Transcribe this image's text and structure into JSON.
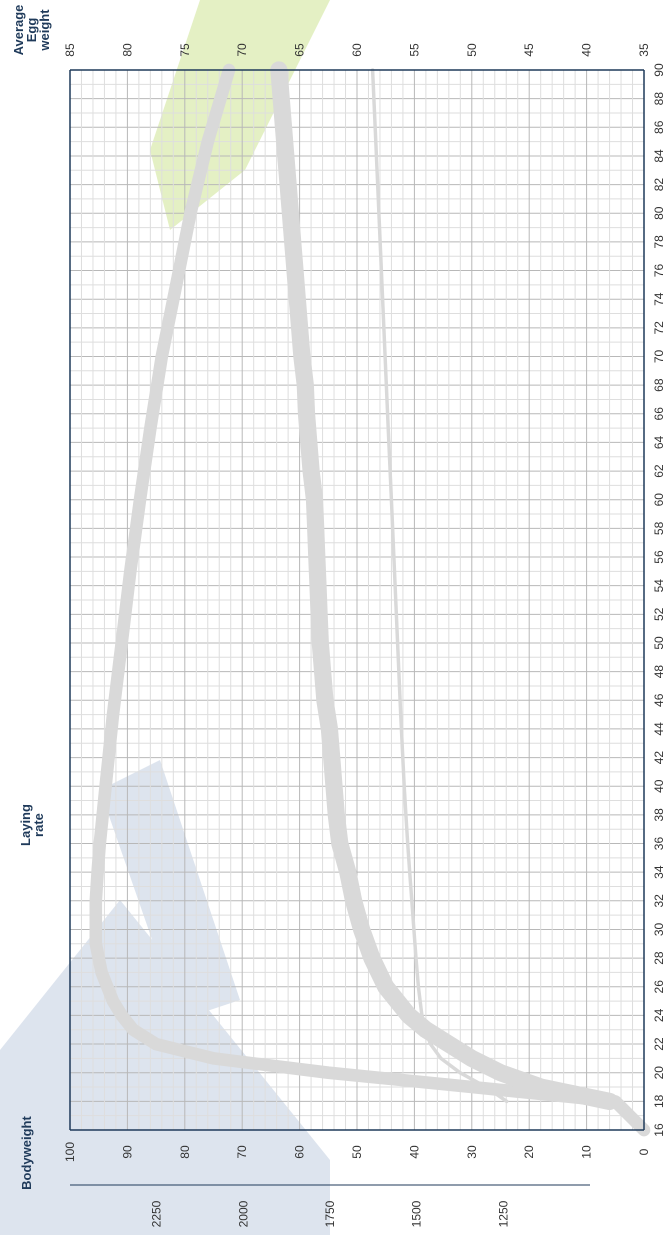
{
  "colors": {
    "grid_major": "#b8b8b8",
    "grid_minor": "#dedede",
    "axis": "#1f3a5a",
    "tick_text": "#333333",
    "curve": "#d9d9d9",
    "watermark_green": "#e4f0c4",
    "watermark_blue": "#dde4ee"
  },
  "labels": {
    "egg_weight": [
      "Average",
      "Egg",
      "weight"
    ],
    "laying_rate": [
      "Laying",
      "rate"
    ],
    "bodyweight": "Bodyweight"
  },
  "chart_data": {
    "type": "line",
    "orientation": "rotated-90",
    "x": {
      "label": "",
      "range": [
        16,
        90
      ],
      "ticks": [
        16,
        18,
        20,
        22,
        24,
        26,
        28,
        30,
        32,
        34,
        36,
        38,
        40,
        42,
        44,
        46,
        48,
        50,
        52,
        54,
        56,
        58,
        60,
        62,
        64,
        66,
        68,
        70,
        72,
        74,
        76,
        78,
        80,
        82,
        84,
        86,
        88,
        90
      ]
    },
    "axes": {
      "egg_weight": {
        "label": "Average Egg weight",
        "range": [
          35,
          85
        ],
        "ticks": [
          85,
          80,
          75,
          70,
          65,
          60,
          55,
          50,
          45,
          40,
          35
        ]
      },
      "laying_rate": {
        "label": "Laying rate",
        "range": [
          0,
          100
        ],
        "ticks": [
          100,
          90,
          80,
          70,
          60,
          50,
          40,
          30,
          20,
          10,
          0
        ]
      },
      "bodyweight": {
        "label": "Bodyweight",
        "range": [
          1000,
          2500
        ],
        "ticks": [
          2250,
          2000,
          1750,
          1500,
          1250
        ]
      }
    },
    "grid": true,
    "series": [
      {
        "axis": "laying_rate",
        "band_width": 2.2,
        "x": [
          16,
          18,
          19,
          20,
          21,
          22,
          23,
          24,
          25,
          26,
          27,
          28,
          29,
          30,
          32,
          34,
          36,
          38,
          40,
          45,
          50,
          55,
          60,
          65,
          70,
          75,
          80,
          85,
          90
        ],
        "y": [
          0,
          5,
          30,
          55,
          75,
          85,
          89,
          91,
          92.5,
          93.5,
          94.5,
          95,
          95.5,
          95.5,
          95.5,
          95.2,
          94.8,
          94.3,
          93.8,
          92.5,
          91,
          89.5,
          87.8,
          86,
          84,
          81.5,
          79,
          76,
          72.3
        ]
      },
      {
        "axis": "egg_weight",
        "band_width": 1.5,
        "x": [
          18,
          19,
          20,
          21,
          22,
          23,
          24,
          25,
          26,
          28,
          30,
          32,
          34,
          36,
          38,
          40,
          42,
          44,
          46,
          48,
          50,
          52,
          54,
          56,
          58,
          60,
          62,
          64,
          66,
          68,
          70,
          72,
          74,
          76,
          78,
          80,
          82,
          84,
          86,
          88,
          90
        ],
        "y": [
          38,
          44,
          47.5,
          50,
          52,
          54,
          55.5,
          56.5,
          57.5,
          58.7,
          59.6,
          60.3,
          60.8,
          61.5,
          61.8,
          62.0,
          62.2,
          62.4,
          62.8,
          63.0,
          63.2,
          63.3,
          63.4,
          63.5,
          63.6,
          63.7,
          64.0,
          64.2,
          64.4,
          64.5,
          64.8,
          65.0,
          65.2,
          65.4,
          65.6,
          65.8,
          66.0,
          66.2,
          66.4,
          66.6,
          66.8
        ]
      },
      {
        "axis": "bodyweight",
        "band_width": 10,
        "x": [
          18,
          19,
          20,
          21,
          22,
          23,
          24,
          26,
          28,
          30,
          32,
          34,
          36,
          38,
          40,
          45,
          50,
          55,
          60,
          65,
          70,
          75,
          80,
          85,
          90
        ],
        "y": [
          1240,
          1300,
          1375,
          1430,
          1460,
          1475,
          1485,
          1495,
          1502,
          1508,
          1514,
          1520,
          1526,
          1531,
          1536,
          1546,
          1555,
          1564,
          1573,
          1582,
          1591,
          1600,
          1609,
          1618,
          1627
        ]
      }
    ]
  }
}
